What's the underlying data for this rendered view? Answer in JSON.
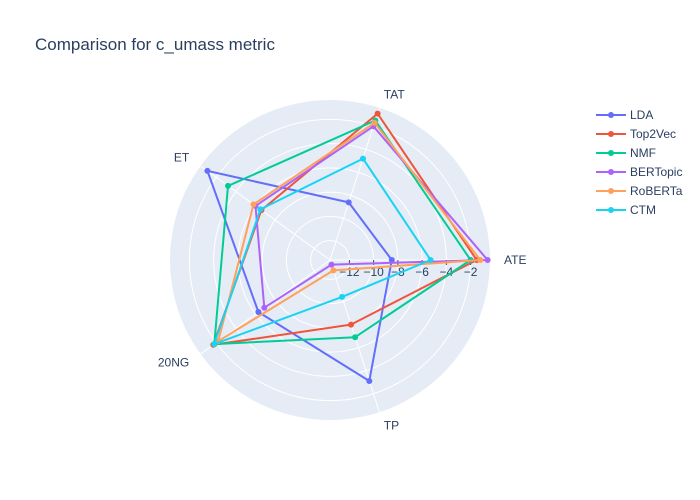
{
  "chart_data": {
    "type": "radar",
    "title": "Comparison for c_umass metric",
    "categories": [
      "ATE",
      "TAT",
      "ET",
      "20NG",
      "TP"
    ],
    "radial_range": [
      -13.6,
      -0.4
    ],
    "radial_ticks": [
      -12,
      -10,
      -8,
      -6,
      -4,
      -2
    ],
    "radial_tick_labels": [
      "−12",
      "−10",
      "−8",
      "−6",
      "−4",
      "−2"
    ],
    "legend_position": "top-right",
    "series": [
      {
        "name": "LDA",
        "color": "#636efa",
        "values": [
          -8.5,
          -8.6,
          -1.1,
          -6.3,
          -3.1
        ]
      },
      {
        "name": "Top2Vec",
        "color": "#EF553B",
        "values": [
          -1.5,
          -0.9,
          -6.6,
          -1.7,
          -8.0
        ]
      },
      {
        "name": "NMF",
        "color": "#00cc96",
        "values": [
          -2.0,
          -1.5,
          -3.2,
          -1.8,
          -6.9
        ]
      },
      {
        "name": "BERTopic",
        "color": "#ab63fa",
        "values": [
          -0.6,
          -2.0,
          -6.0,
          -6.9,
          -13.2
        ]
      },
      {
        "name": "RoBERTa",
        "color": "#FFA15A",
        "values": [
          -1.2,
          -1.7,
          -5.8,
          -2.2,
          -12.7
        ]
      },
      {
        "name": "CTM",
        "color": "#19d3f3",
        "values": [
          -5.3,
          -4.8,
          -6.5,
          -1.8,
          -10.4
        ]
      }
    ]
  }
}
